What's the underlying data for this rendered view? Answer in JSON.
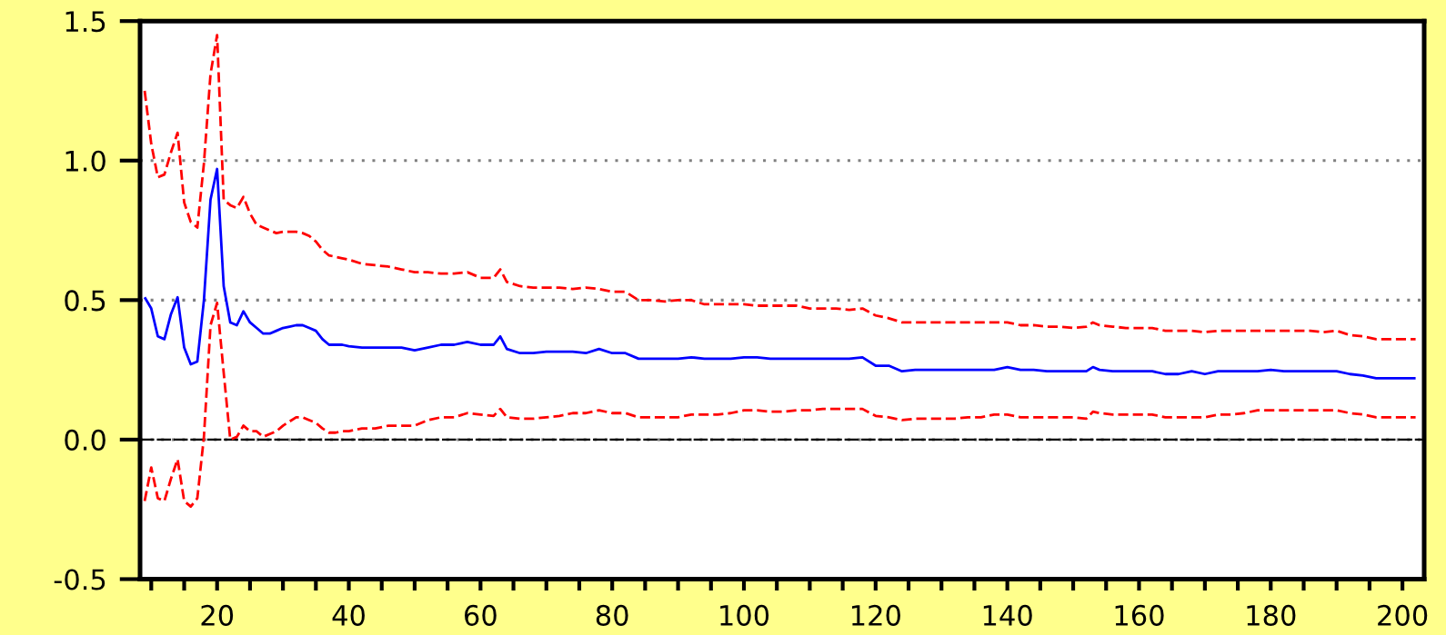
{
  "chart_data": {
    "type": "line",
    "x": [
      9,
      10,
      11,
      12,
      13,
      14,
      15,
      16,
      17,
      18,
      19,
      20,
      21,
      22,
      23,
      24,
      25,
      26,
      27,
      28,
      29,
      30,
      31,
      32,
      33,
      34,
      35,
      36,
      37,
      38,
      39,
      40,
      42,
      44,
      46,
      48,
      50,
      52,
      54,
      56,
      58,
      60,
      62,
      63,
      64,
      66,
      68,
      70,
      72,
      74,
      76,
      78,
      80,
      82,
      84,
      86,
      88,
      90,
      92,
      94,
      96,
      98,
      100,
      102,
      104,
      106,
      108,
      110,
      112,
      114,
      116,
      118,
      120,
      122,
      124,
      126,
      128,
      130,
      132,
      134,
      136,
      138,
      140,
      142,
      144,
      146,
      148,
      150,
      152,
      153,
      154,
      156,
      158,
      160,
      162,
      164,
      166,
      168,
      170,
      172,
      174,
      176,
      178,
      180,
      182,
      184,
      186,
      188,
      190,
      192,
      194,
      196,
      198,
      200,
      202
    ],
    "xlim": [
      8.3,
      203.3
    ],
    "xticks": [
      {
        "value": 10,
        "label": null
      },
      {
        "value": 15,
        "label": null
      },
      20,
      {
        "value": 25,
        "label": null
      },
      {
        "value": 30,
        "label": null
      },
      {
        "value": 35,
        "label": null
      },
      40,
      {
        "value": 45,
        "label": null
      },
      {
        "value": 50,
        "label": null
      },
      {
        "value": 55,
        "label": null
      },
      60,
      {
        "value": 65,
        "label": null
      },
      {
        "value": 70,
        "label": null
      },
      {
        "value": 75,
        "label": null
      },
      80,
      {
        "value": 85,
        "label": null
      },
      {
        "value": 90,
        "label": null
      },
      {
        "value": 95,
        "label": null
      },
      100,
      {
        "value": 105,
        "label": null
      },
      {
        "value": 110,
        "label": null
      },
      {
        "value": 115,
        "label": null
      },
      120,
      {
        "value": 125,
        "label": null
      },
      {
        "value": 130,
        "label": null
      },
      {
        "value": 135,
        "label": null
      },
      140,
      {
        "value": 145,
        "label": null
      },
      {
        "value": 150,
        "label": null
      },
      {
        "value": 155,
        "label": null
      },
      160,
      {
        "value": 165,
        "label": null
      },
      {
        "value": 170,
        "label": null
      },
      {
        "value": 175,
        "label": null
      },
      180,
      {
        "value": 185,
        "label": null
      },
      {
        "value": 190,
        "label": null
      },
      {
        "value": 195,
        "label": null
      },
      200
    ],
    "ylim": [
      -0.5,
      1.5
    ],
    "yticks": [
      -0.5,
      {
        "value": 0,
        "label": "0.0"
      },
      0.5,
      {
        "value": 1,
        "label": "1.0"
      },
      1.5
    ],
    "grid": "y",
    "ref_lines": [
      {
        "axis": "y",
        "value": 0,
        "color": "#000000",
        "line_style": "dashed"
      }
    ],
    "series": [
      {
        "color": "#0000ff",
        "line_style": "solid",
        "values": [
          0.51,
          0.47,
          0.37,
          0.36,
          0.45,
          0.51,
          0.33,
          0.27,
          0.28,
          0.5,
          0.86,
          0.97,
          0.55,
          0.42,
          0.41,
          0.46,
          0.42,
          0.4,
          0.38,
          0.38,
          0.39,
          0.4,
          0.405,
          0.41,
          0.41,
          0.4,
          0.39,
          0.36,
          0.34,
          0.34,
          0.34,
          0.335,
          0.33,
          0.33,
          0.33,
          0.33,
          0.32,
          0.33,
          0.34,
          0.34,
          0.35,
          0.34,
          0.34,
          0.37,
          0.325,
          0.31,
          0.31,
          0.315,
          0.315,
          0.315,
          0.31,
          0.325,
          0.31,
          0.31,
          0.29,
          0.29,
          0.29,
          0.29,
          0.295,
          0.29,
          0.29,
          0.29,
          0.295,
          0.295,
          0.29,
          0.29,
          0.29,
          0.29,
          0.29,
          0.29,
          0.29,
          0.295,
          0.265,
          0.265,
          0.245,
          0.25,
          0.25,
          0.25,
          0.25,
          0.25,
          0.25,
          0.25,
          0.26,
          0.25,
          0.25,
          0.245,
          0.245,
          0.245,
          0.245,
          0.26,
          0.25,
          0.245,
          0.245,
          0.245,
          0.245,
          0.235,
          0.235,
          0.245,
          0.235,
          0.245,
          0.245,
          0.245,
          0.245,
          0.25,
          0.245,
          0.245,
          0.245,
          0.245,
          0.245,
          0.235,
          0.23,
          0.22,
          0.22,
          0.22,
          0.22
        ]
      },
      {
        "color": "#ff0000",
        "line_style": "dashed",
        "values": [
          1.25,
          1.06,
          0.94,
          0.95,
          1.03,
          1.1,
          0.85,
          0.78,
          0.76,
          0.99,
          1.31,
          1.45,
          0.86,
          0.84,
          0.83,
          0.87,
          0.81,
          0.77,
          0.76,
          0.75,
          0.74,
          0.745,
          0.745,
          0.745,
          0.74,
          0.73,
          0.71,
          0.68,
          0.66,
          0.655,
          0.65,
          0.645,
          0.63,
          0.625,
          0.62,
          0.61,
          0.6,
          0.6,
          0.595,
          0.595,
          0.6,
          0.58,
          0.58,
          0.61,
          0.565,
          0.55,
          0.545,
          0.545,
          0.545,
          0.54,
          0.545,
          0.54,
          0.53,
          0.53,
          0.5,
          0.5,
          0.495,
          0.5,
          0.5,
          0.485,
          0.485,
          0.485,
          0.485,
          0.48,
          0.48,
          0.48,
          0.48,
          0.47,
          0.47,
          0.47,
          0.465,
          0.47,
          0.445,
          0.435,
          0.42,
          0.42,
          0.42,
          0.42,
          0.42,
          0.42,
          0.42,
          0.42,
          0.42,
          0.41,
          0.41,
          0.405,
          0.405,
          0.4,
          0.405,
          0.42,
          0.41,
          0.405,
          0.4,
          0.4,
          0.4,
          0.39,
          0.39,
          0.39,
          0.385,
          0.39,
          0.39,
          0.39,
          0.39,
          0.39,
          0.39,
          0.39,
          0.39,
          0.385,
          0.39,
          0.375,
          0.37,
          0.36,
          0.36,
          0.36,
          0.36
        ]
      },
      {
        "color": "#ff0000",
        "line_style": "dashed",
        "values": [
          -0.22,
          -0.1,
          -0.21,
          -0.22,
          -0.14,
          -0.07,
          -0.22,
          -0.24,
          -0.21,
          0.01,
          0.41,
          0.49,
          0.24,
          0.0,
          0.01,
          0.05,
          0.03,
          0.03,
          0.01,
          0.02,
          0.03,
          0.05,
          0.065,
          0.08,
          0.08,
          0.07,
          0.06,
          0.04,
          0.025,
          0.025,
          0.03,
          0.03,
          0.04,
          0.04,
          0.05,
          0.05,
          0.05,
          0.07,
          0.08,
          0.08,
          0.095,
          0.09,
          0.085,
          0.11,
          0.08,
          0.075,
          0.075,
          0.08,
          0.085,
          0.095,
          0.095,
          0.105,
          0.095,
          0.095,
          0.08,
          0.08,
          0.08,
          0.08,
          0.09,
          0.09,
          0.09,
          0.095,
          0.105,
          0.105,
          0.1,
          0.1,
          0.105,
          0.105,
          0.11,
          0.11,
          0.11,
          0.11,
          0.085,
          0.08,
          0.07,
          0.075,
          0.075,
          0.075,
          0.075,
          0.08,
          0.08,
          0.09,
          0.09,
          0.08,
          0.08,
          0.08,
          0.08,
          0.08,
          0.075,
          0.1,
          0.095,
          0.09,
          0.09,
          0.09,
          0.09,
          0.08,
          0.08,
          0.08,
          0.08,
          0.09,
          0.09,
          0.095,
          0.105,
          0.105,
          0.105,
          0.105,
          0.105,
          0.105,
          0.105,
          0.095,
          0.09,
          0.08,
          0.08,
          0.08,
          0.08
        ]
      }
    ]
  }
}
